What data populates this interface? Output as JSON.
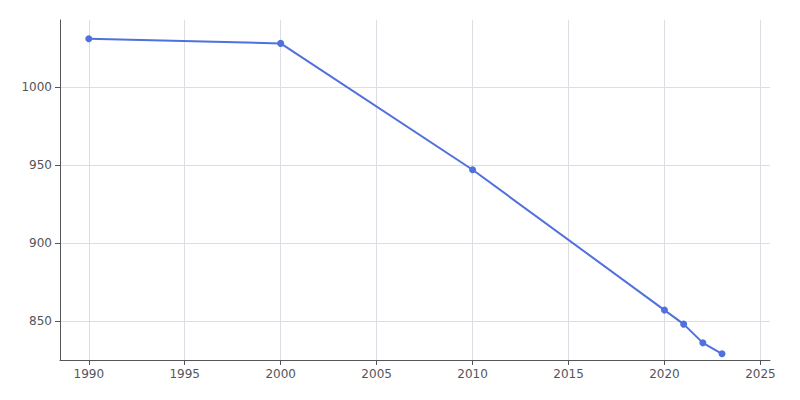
{
  "chart_data": {
    "type": "line",
    "x": [
      1990,
      2000,
      2010,
      2020,
      2021,
      2022,
      2023
    ],
    "values": [
      1031,
      1028,
      947,
      857,
      848,
      836,
      829
    ],
    "marker": "circle",
    "xlim": [
      1988.5,
      2025.5
    ],
    "ylim": [
      825,
      1043
    ],
    "xticks": [
      1990,
      1995,
      2000,
      2005,
      2010,
      2015,
      2020,
      2025
    ],
    "yticks": [
      850,
      900,
      950,
      1000
    ],
    "grid": true
  }
}
